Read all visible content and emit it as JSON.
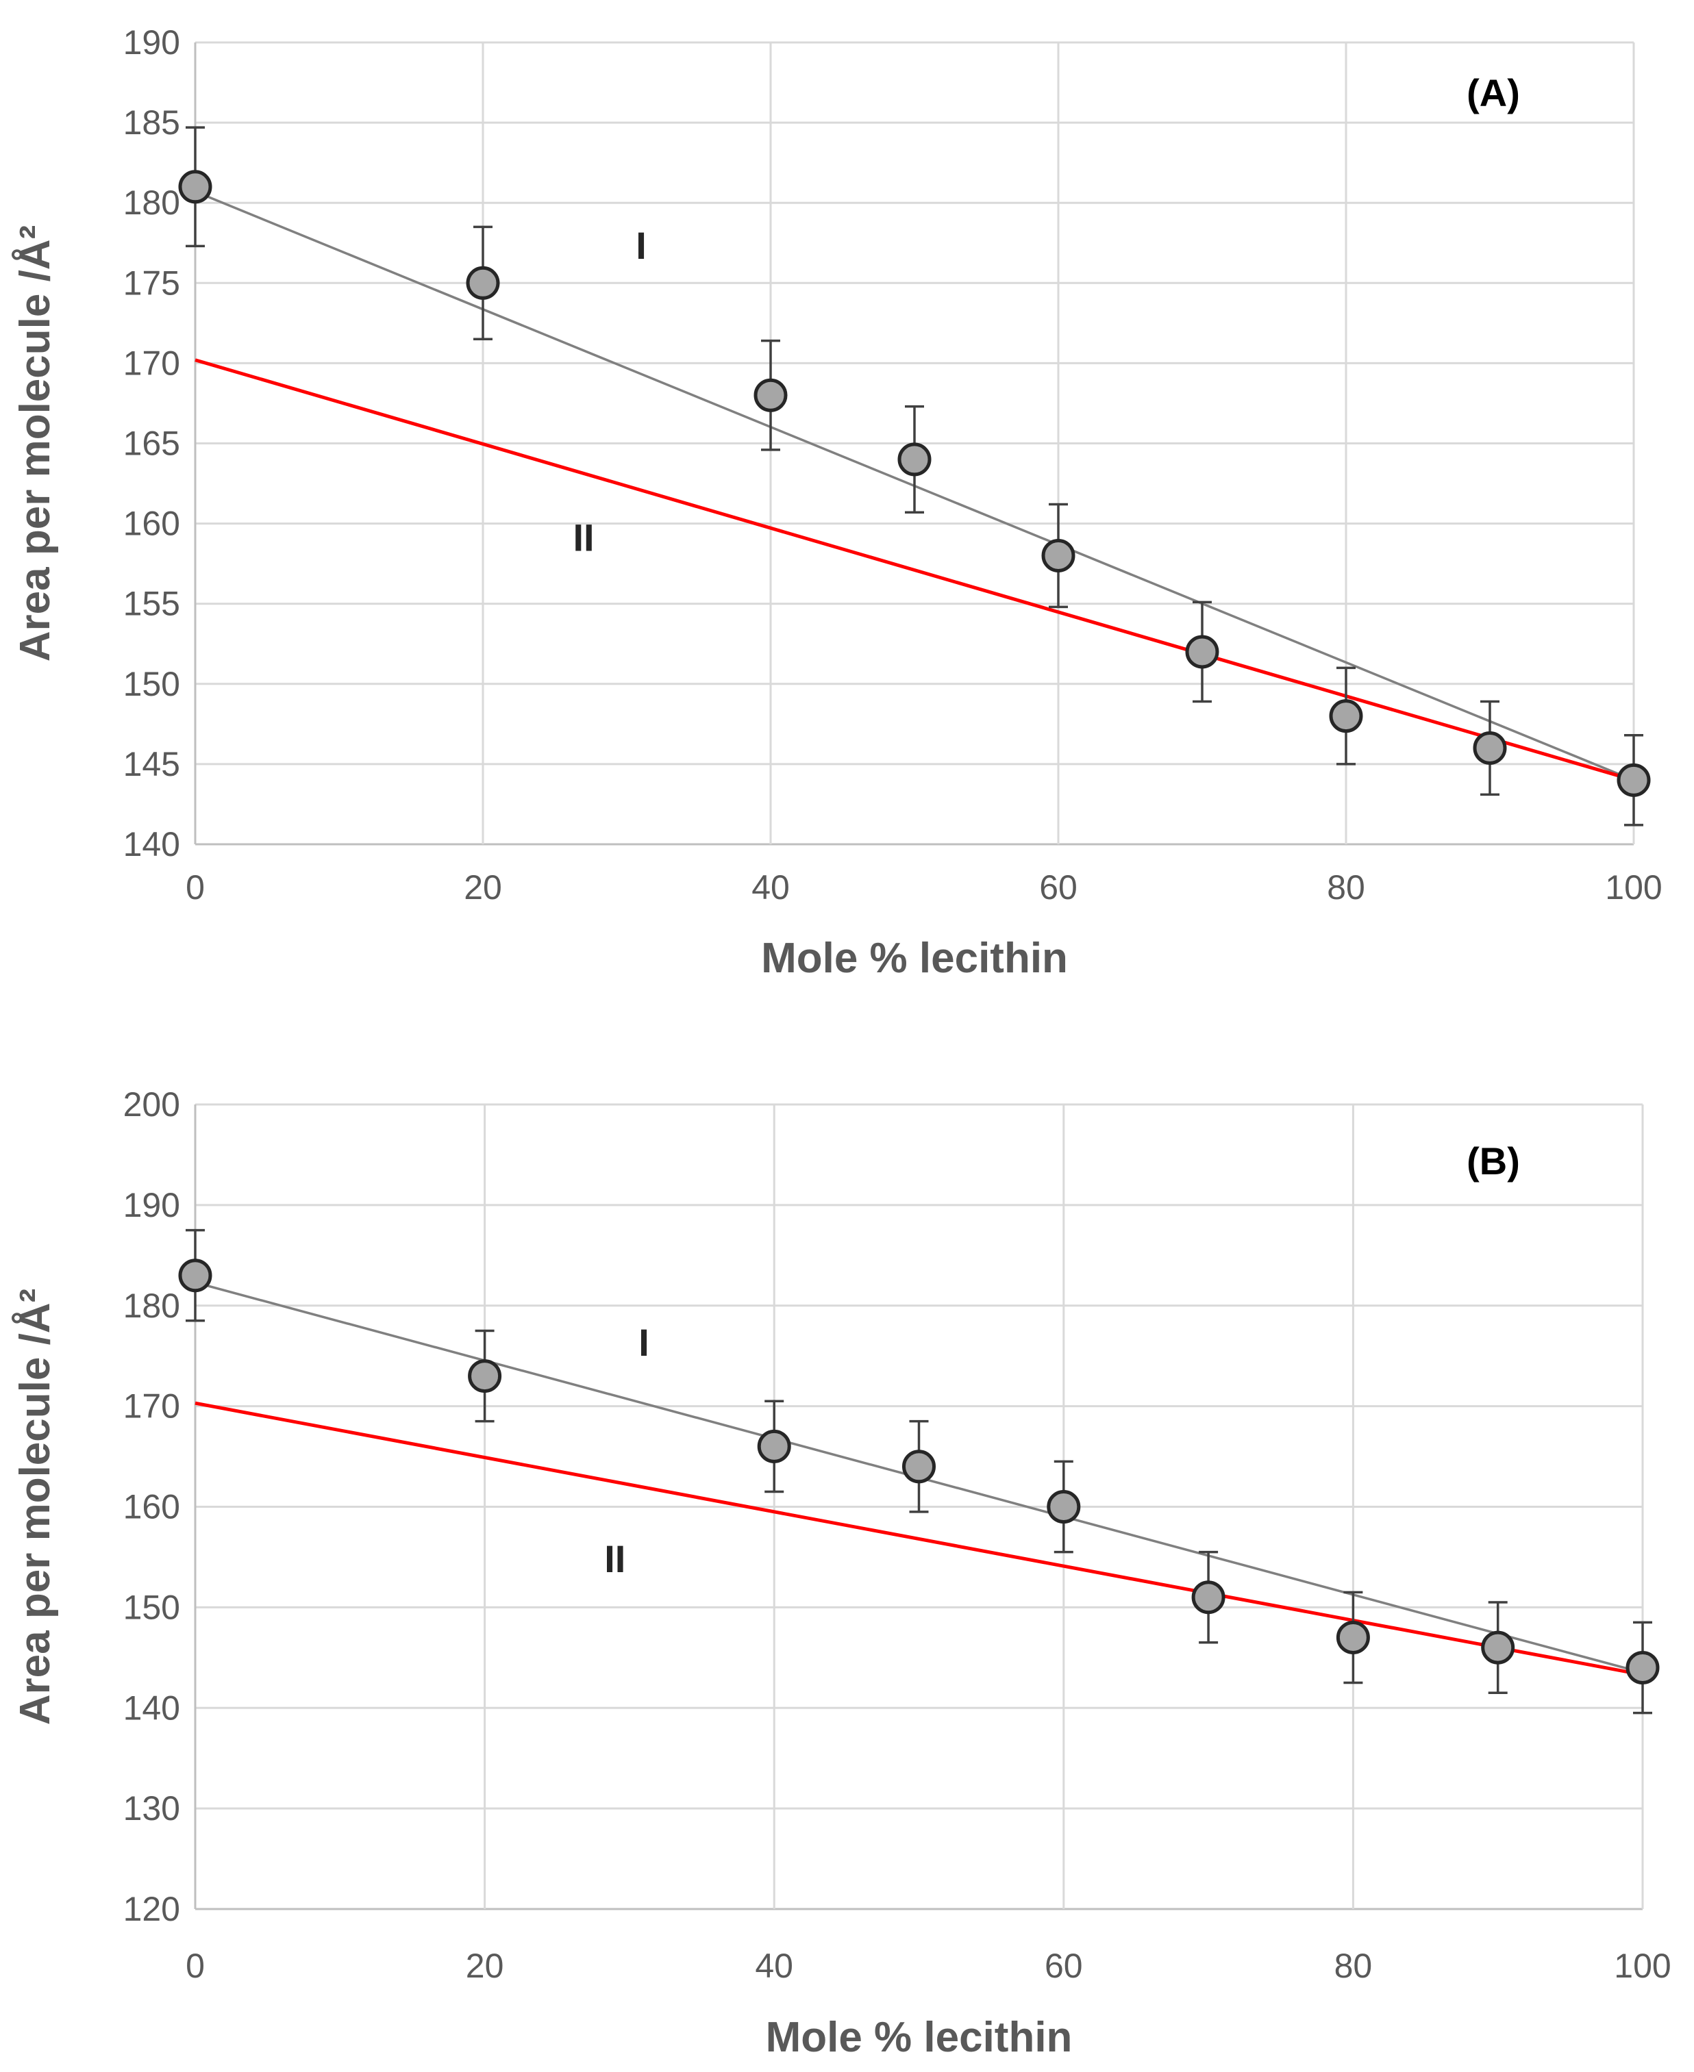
{
  "chart_data": [
    {
      "type": "scatter",
      "panel_label": "(A)",
      "xlabel": "Mole % lecithin",
      "ylabel": "Area per molecule /Å²",
      "xlim": [
        0,
        100
      ],
      "ylim": [
        140,
        190
      ],
      "xticks": [
        0,
        20,
        40,
        60,
        80,
        100
      ],
      "yticks": [
        140,
        145,
        150,
        155,
        160,
        165,
        170,
        175,
        180,
        185,
        190
      ],
      "grid": true,
      "points": {
        "x": [
          0,
          20,
          40,
          50,
          60,
          70,
          80,
          90,
          100
        ],
        "y": [
          181,
          175,
          168,
          164,
          158,
          152,
          148,
          146,
          144
        ],
        "err": [
          3.7,
          3.5,
          3.4,
          3.3,
          3.2,
          3.1,
          3.0,
          2.9,
          2.8
        ]
      },
      "lines": [
        {
          "name": "I",
          "label": "I",
          "color": "#808080",
          "x": [
            0,
            100
          ],
          "y": [
            180.7,
            144
          ],
          "label_at": [
            31,
            176.5
          ]
        },
        {
          "name": "II",
          "label": "II",
          "color": "#ff0000",
          "x": [
            0,
            100
          ],
          "y": [
            170.2,
            144
          ],
          "label_at": [
            27,
            158.3
          ]
        }
      ]
    },
    {
      "type": "scatter",
      "panel_label": "(B)",
      "xlabel": "Mole % lecithin",
      "ylabel": "Area per molecule /Å²",
      "xlim": [
        0,
        100
      ],
      "ylim": [
        120,
        200
      ],
      "xticks": [
        0,
        20,
        40,
        60,
        80,
        100
      ],
      "yticks": [
        120,
        130,
        140,
        150,
        160,
        170,
        180,
        190,
        200
      ],
      "grid": true,
      "points": {
        "x": [
          0,
          20,
          40,
          50,
          60,
          70,
          80,
          90,
          100
        ],
        "y": [
          183,
          173,
          166,
          164,
          160,
          151,
          147,
          146,
          144
        ],
        "err": [
          4.5,
          4.5,
          4.5,
          4.5,
          4.5,
          4.5,
          4.5,
          4.5,
          4.5
        ]
      },
      "lines": [
        {
          "name": "I",
          "label": "I",
          "color": "#808080",
          "x": [
            0,
            100
          ],
          "y": [
            182.3,
            143.5
          ],
          "label_at": [
            31,
            175
          ]
        },
        {
          "name": "II",
          "label": "II",
          "color": "#ff0000",
          "x": [
            0,
            100
          ],
          "y": [
            170.3,
            143.3
          ],
          "label_at": [
            29,
            153.5
          ]
        }
      ]
    }
  ]
}
